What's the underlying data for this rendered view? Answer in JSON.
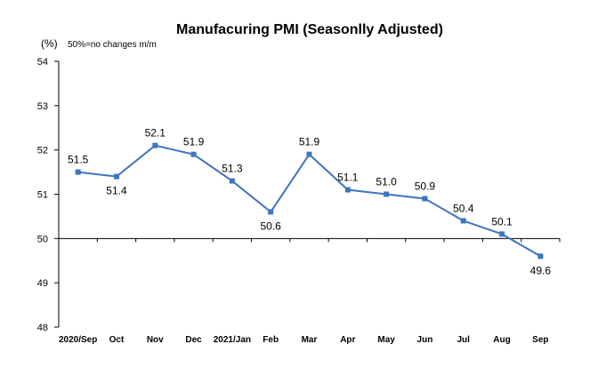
{
  "chart_data": {
    "type": "line",
    "title": "Manufacuring PMI (Seasonlly Adjusted)",
    "unit_label": "(%)",
    "note": "50%=no changes  m/m",
    "categories": [
      "2020/Sep",
      "Oct",
      "Nov",
      "Dec",
      "2021/Jan",
      "Feb",
      "Mar",
      "Apr",
      "May",
      "Jun",
      "Jul",
      "Aug",
      "Sep"
    ],
    "series": [
      {
        "values": [
          51.5,
          51.4,
          52.1,
          51.9,
          51.3,
          50.6,
          51.9,
          51.1,
          51.0,
          50.9,
          50.4,
          50.1,
          49.6
        ],
        "labels": [
          "51.5",
          "51.4",
          "52.1",
          "51.9",
          "51.3",
          "50.6",
          "51.9",
          "51.1",
          "51.0",
          "50.9",
          "50.4",
          "50.1",
          "49.6"
        ],
        "color": "#3F74C0"
      }
    ],
    "ylim": [
      48,
      54
    ],
    "yticks": [
      "48",
      "49",
      "50",
      "51",
      "52",
      "53",
      "54"
    ],
    "reference_value": 50,
    "grid": false,
    "legend": "none"
  }
}
